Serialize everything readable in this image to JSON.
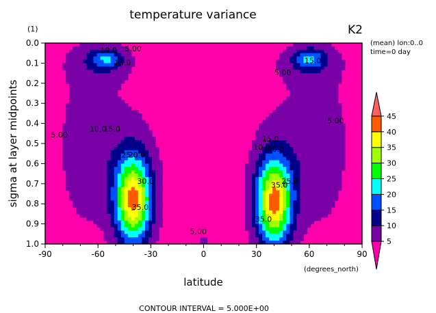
{
  "chart_data": {
    "type": "contour",
    "title": "temperature variance",
    "panel_label": "(1)",
    "model_label": "K2",
    "xlabel": "latitude",
    "x_units": "(degrees_north)",
    "ylabel": "sigma at layer midpoints",
    "xlim": [
      -90,
      90
    ],
    "ylim": [
      1.0,
      0.0
    ],
    "x_ticks": [
      "-90",
      "-60",
      "-30",
      "0",
      "30",
      "60",
      "90"
    ],
    "x_tick_values": [
      -90,
      -60,
      -30,
      0,
      30,
      60,
      90
    ],
    "y_ticks": [
      "0.0",
      "0.1",
      "0.2",
      "0.3",
      "0.4",
      "0.5",
      "0.6",
      "0.7",
      "0.8",
      "0.9",
      "1.0"
    ],
    "y_tick_values": [
      0.0,
      0.1,
      0.2,
      0.3,
      0.4,
      0.5,
      0.6,
      0.7,
      0.8,
      0.9,
      1.0
    ],
    "info_line1": "(mean) lon:0..0",
    "info_line2": "time=0 day",
    "footer": "CONTOUR INTERVAL = 5.000E+00",
    "colorbar": {
      "labels": [
        "5",
        "10",
        "15",
        "20",
        "25",
        "30",
        "35",
        "40",
        "45"
      ],
      "levels": [
        5,
        10,
        15,
        20,
        25,
        30,
        35,
        40,
        45
      ],
      "colors": [
        "#ff00aa",
        "#7a00a8",
        "#00008b",
        "#0050ff",
        "#00ffff",
        "#00ff00",
        "#a0ff00",
        "#ffff00",
        "#ff5a00",
        "#ff6060"
      ]
    },
    "contour_labels": [
      {
        "text": "5.00",
        "lat": -82,
        "sigma": 0.47
      },
      {
        "text": "5.00",
        "lat": -40,
        "sigma": 0.04
      },
      {
        "text": "10.0",
        "lat": -54,
        "sigma": 0.05
      },
      {
        "text": "15.0",
        "lat": -46,
        "sigma": 0.11
      },
      {
        "text": "10.0",
        "lat": -60,
        "sigma": 0.44
      },
      {
        "text": "15.0",
        "lat": -52,
        "sigma": 0.44
      },
      {
        "text": "25.0",
        "lat": -42,
        "sigma": 0.57
      },
      {
        "text": "20.0",
        "lat": -38,
        "sigma": 0.57
      },
      {
        "text": "30.0",
        "lat": -33,
        "sigma": 0.7
      },
      {
        "text": "35.0",
        "lat": -36,
        "sigma": 0.83
      },
      {
        "text": "5.00",
        "lat": -3,
        "sigma": 0.95
      },
      {
        "text": "5.00",
        "lat": 45,
        "sigma": 0.16
      },
      {
        "text": "15.0",
        "lat": 62,
        "sigma": 0.1
      },
      {
        "text": "5.00",
        "lat": 75,
        "sigma": 0.4
      },
      {
        "text": "10.0",
        "lat": 33,
        "sigma": 0.53
      },
      {
        "text": "15.0",
        "lat": 38,
        "sigma": 0.49
      },
      {
        "text": "20.0",
        "lat": 41,
        "sigma": 0.54
      },
      {
        "text": "25.0",
        "lat": 49,
        "sigma": 0.7
      },
      {
        "text": "35.0",
        "lat": 43,
        "sigma": 0.72
      },
      {
        "text": "35.0",
        "lat": 34,
        "sigma": 0.89
      }
    ],
    "features": [
      {
        "name": "sh-lower-max",
        "lat": -40,
        "sigma": 0.78,
        "approx_max": 40
      },
      {
        "name": "nh-lower-max",
        "lat": 40,
        "sigma": 0.79,
        "approx_max": 40
      },
      {
        "name": "sh-upper-max",
        "lat": -55,
        "sigma": 0.08,
        "approx_max": 15
      },
      {
        "name": "nh-upper-max",
        "lat": 60,
        "sigma": 0.08,
        "approx_max": 15
      }
    ],
    "grid": false,
    "legend": "right colorbar"
  }
}
